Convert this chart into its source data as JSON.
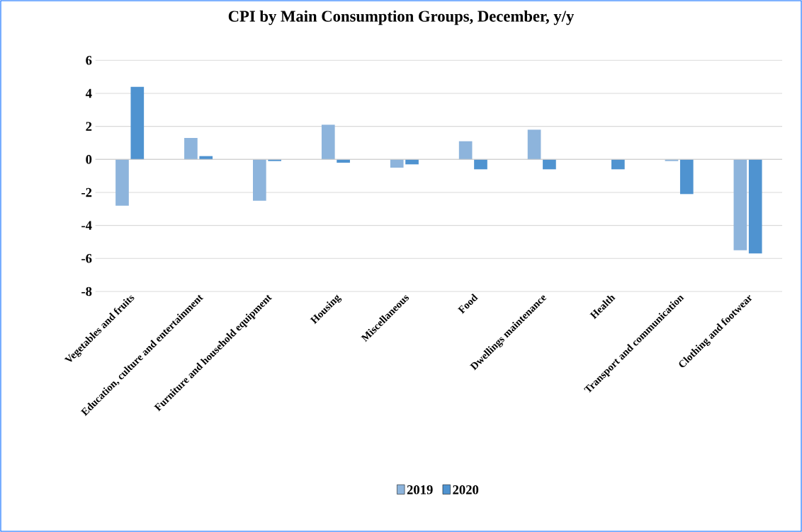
{
  "chart_data": {
    "type": "bar",
    "title": "CPI by Main Consumption Groups, December, y/y",
    "categories": [
      "Vegetables and fruits",
      "Education, culture and entertainment",
      "Furniture and household equipment",
      "Housing",
      "Miscellaneous",
      "Food",
      "Dwellings maintenance",
      "Health",
      "Transport and communication",
      "Clothing and footwear"
    ],
    "series": [
      {
        "name": "2019",
        "color": "#8db4dc",
        "values": [
          -2.8,
          1.3,
          -2.5,
          2.1,
          -0.5,
          1.1,
          1.8,
          0,
          -0.1,
          -5.5
        ]
      },
      {
        "name": "2020",
        "color": "#4f93d0",
        "values": [
          4.4,
          0.2,
          -0.1,
          -0.2,
          -0.3,
          -0.6,
          -0.6,
          -0.6,
          -2.1,
          -5.7
        ]
      }
    ],
    "ylim": [
      -8,
      6
    ],
    "yticks": [
      -8,
      -6,
      -4,
      -2,
      0,
      2,
      4,
      6
    ],
    "grid": "y",
    "legend": "bottom"
  }
}
